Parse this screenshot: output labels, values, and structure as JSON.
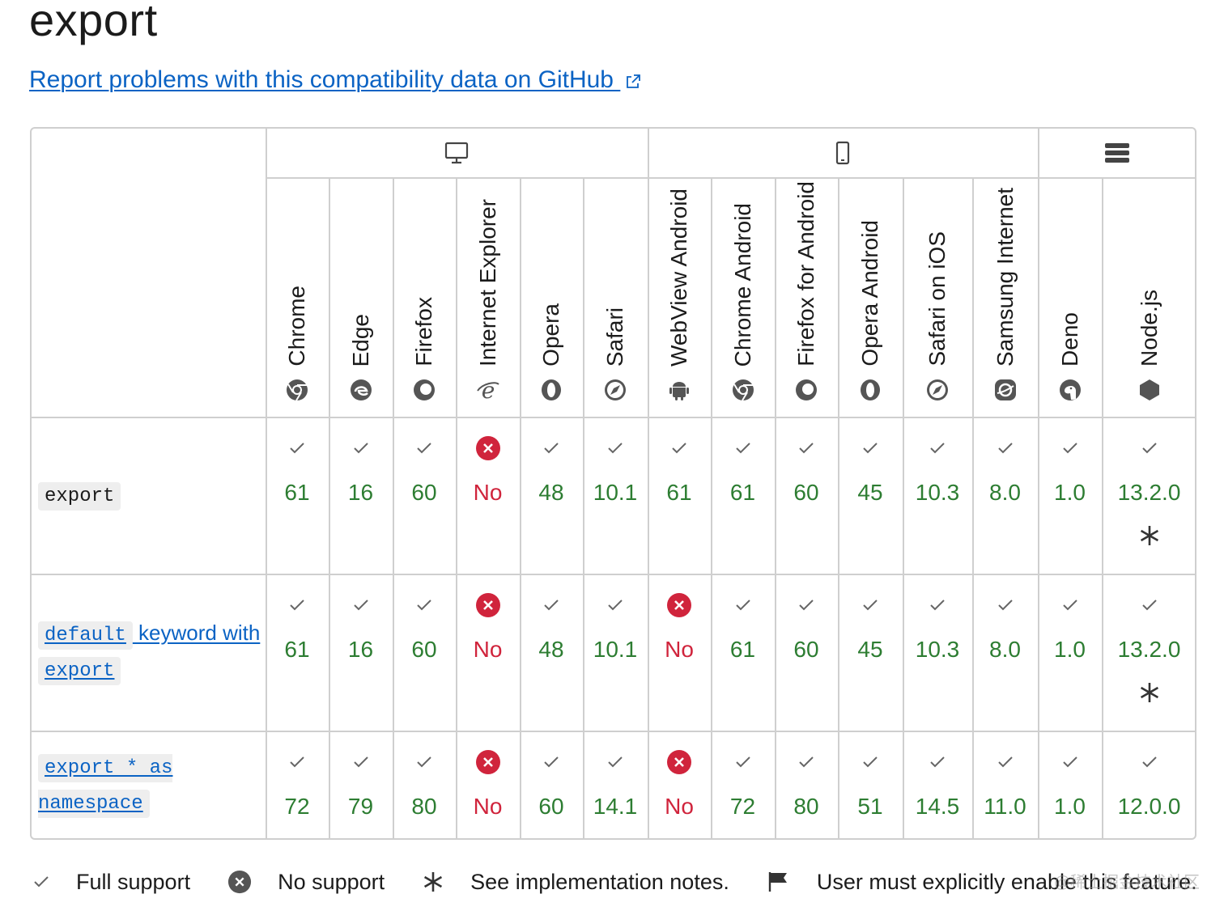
{
  "page_title": "export",
  "report_link": "Report problems with this compatibility data on GitHub",
  "groups": [
    {
      "icon": "desktop-icon"
    },
    {
      "icon": "mobile-icon"
    },
    {
      "icon": "server-icon"
    }
  ],
  "browsers": [
    {
      "name": "Chrome",
      "icon": "chrome-icon"
    },
    {
      "name": "Edge",
      "icon": "edge-icon"
    },
    {
      "name": "Firefox",
      "icon": "firefox-icon"
    },
    {
      "name": "Internet Explorer",
      "icon": "internet-explorer-icon"
    },
    {
      "name": "Opera",
      "icon": "opera-icon"
    },
    {
      "name": "Safari",
      "icon": "safari-icon"
    },
    {
      "name": "WebView Android",
      "icon": "android-icon"
    },
    {
      "name": "Chrome Android",
      "icon": "chrome-icon"
    },
    {
      "name": "Firefox for Android",
      "icon": "firefox-icon"
    },
    {
      "name": "Opera Android",
      "icon": "opera-icon"
    },
    {
      "name": "Safari on iOS",
      "icon": "safari-icon"
    },
    {
      "name": "Samsung Internet",
      "icon": "samsung-internet-icon"
    },
    {
      "name": "Deno",
      "icon": "deno-icon"
    },
    {
      "name": "Node.js",
      "icon": "nodejs-icon"
    }
  ],
  "features": [
    {
      "label_parts": [
        {
          "text": "export",
          "code": true
        }
      ],
      "link": false,
      "support": [
        {
          "v": "61",
          "ok": true
        },
        {
          "v": "16",
          "ok": true
        },
        {
          "v": "60",
          "ok": true
        },
        {
          "v": "No",
          "ok": false
        },
        {
          "v": "48",
          "ok": true
        },
        {
          "v": "10.1",
          "ok": true
        },
        {
          "v": "61",
          "ok": true
        },
        {
          "v": "61",
          "ok": true
        },
        {
          "v": "60",
          "ok": true
        },
        {
          "v": "45",
          "ok": true
        },
        {
          "v": "10.3",
          "ok": true
        },
        {
          "v": "8.0",
          "ok": true
        },
        {
          "v": "1.0",
          "ok": true
        },
        {
          "v": "13.2.0",
          "ok": true,
          "note": true
        }
      ]
    },
    {
      "label_parts": [
        {
          "text": "default",
          "code": true
        },
        {
          "text": " keyword with ",
          "code": false
        },
        {
          "text": "export",
          "code": true
        }
      ],
      "link": true,
      "support": [
        {
          "v": "61",
          "ok": true
        },
        {
          "v": "16",
          "ok": true
        },
        {
          "v": "60",
          "ok": true
        },
        {
          "v": "No",
          "ok": false
        },
        {
          "v": "48",
          "ok": true
        },
        {
          "v": "10.1",
          "ok": true
        },
        {
          "v": "No",
          "ok": false
        },
        {
          "v": "61",
          "ok": true
        },
        {
          "v": "60",
          "ok": true
        },
        {
          "v": "45",
          "ok": true
        },
        {
          "v": "10.3",
          "ok": true
        },
        {
          "v": "8.0",
          "ok": true
        },
        {
          "v": "1.0",
          "ok": true
        },
        {
          "v": "13.2.0",
          "ok": true,
          "note": true
        }
      ]
    },
    {
      "label_parts": [
        {
          "text": "export * as namespace",
          "code": true
        }
      ],
      "link": true,
      "support": [
        {
          "v": "72",
          "ok": true
        },
        {
          "v": "79",
          "ok": true
        },
        {
          "v": "80",
          "ok": true
        },
        {
          "v": "No",
          "ok": false
        },
        {
          "v": "60",
          "ok": true
        },
        {
          "v": "14.1",
          "ok": true
        },
        {
          "v": "No",
          "ok": false
        },
        {
          "v": "72",
          "ok": true
        },
        {
          "v": "80",
          "ok": true
        },
        {
          "v": "51",
          "ok": true
        },
        {
          "v": "14.5",
          "ok": true
        },
        {
          "v": "11.0",
          "ok": true
        },
        {
          "v": "1.0",
          "ok": true
        },
        {
          "v": "12.0.0",
          "ok": true
        }
      ]
    }
  ],
  "legend": [
    {
      "icon": "check-icon",
      "label": "Full support"
    },
    {
      "icon": "no-support-icon",
      "label": "No support"
    },
    {
      "icon": "asterisk-icon",
      "label": "See implementation notes."
    },
    {
      "icon": "flag-icon",
      "label": "User must explicitly enable this feature."
    }
  ],
  "watermark": "@稀土掘金技术社区",
  "colors": {
    "supported": "#2d7d32",
    "unsupported": "#d0243c",
    "link": "#0b63c4",
    "border": "#cfcfcf"
  }
}
